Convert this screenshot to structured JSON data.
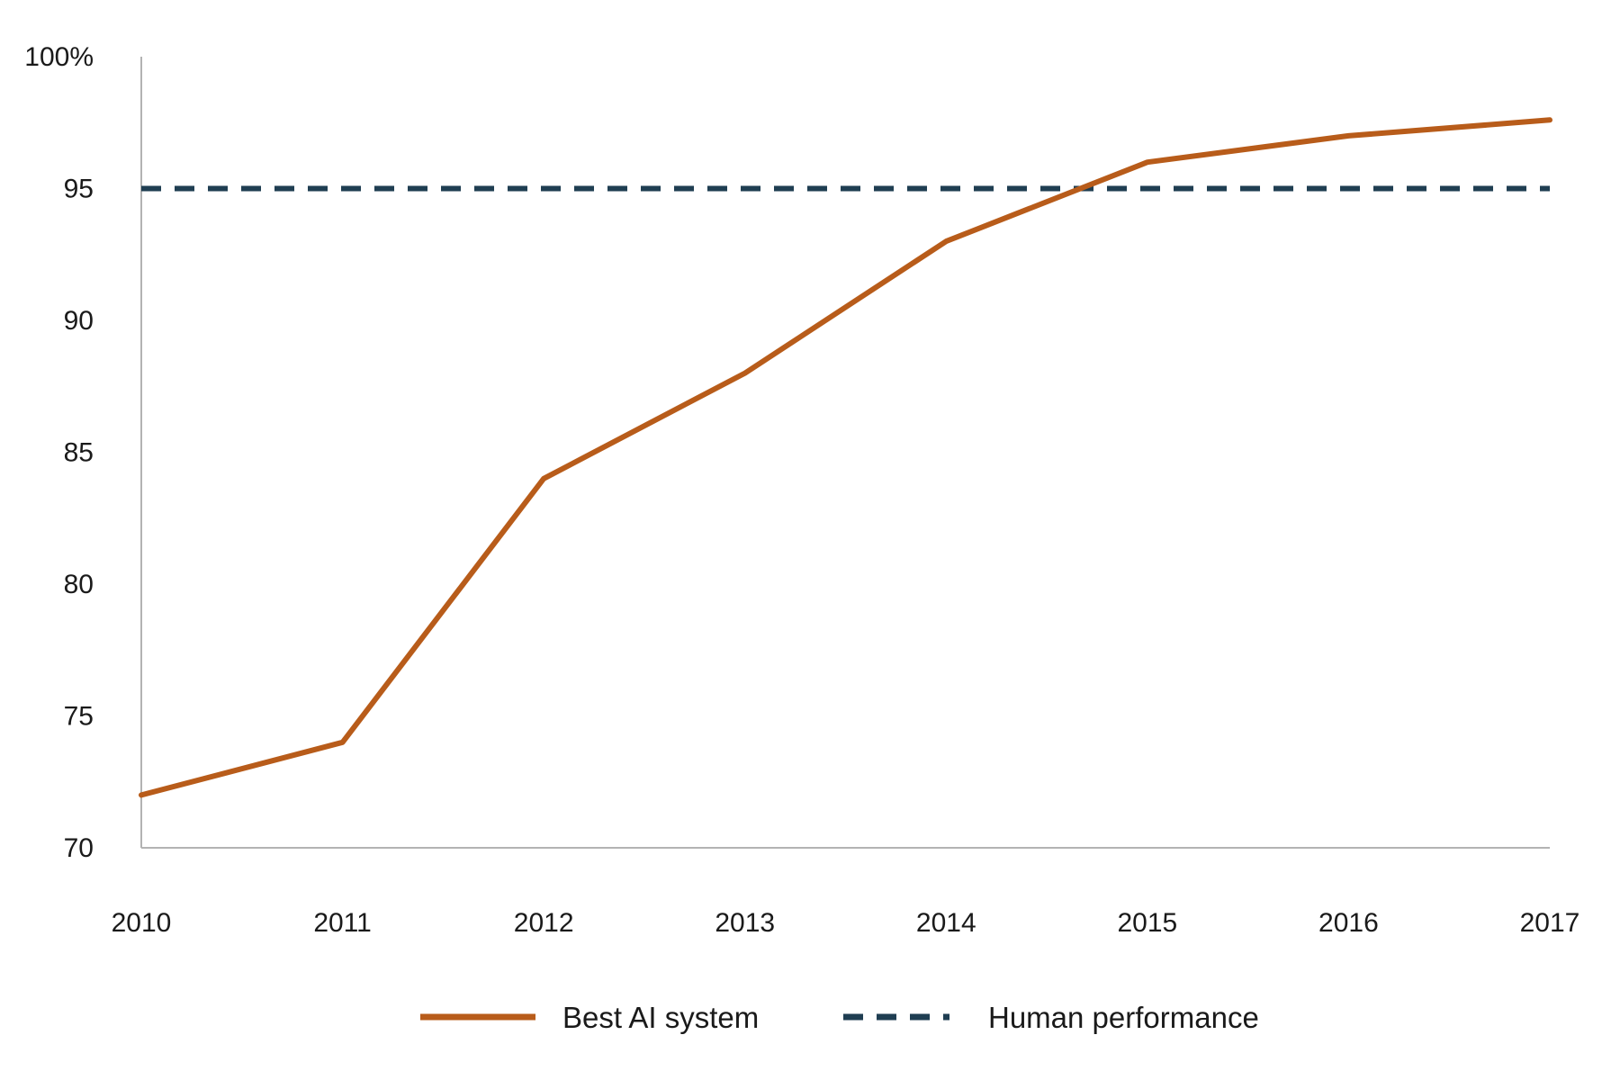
{
  "chart_data": {
    "type": "line",
    "title": "",
    "xlabel": "",
    "ylabel": "",
    "x": [
      2010,
      2011,
      2012,
      2013,
      2014,
      2015,
      2016,
      2017
    ],
    "x_tick_labels": [
      "2010",
      "2011",
      "2012",
      "2013",
      "2014",
      "2015",
      "2016",
      "2017"
    ],
    "y_ticks": [
      70,
      75,
      80,
      85,
      90,
      95,
      100
    ],
    "y_tick_labels": [
      "70",
      "75",
      "80",
      "85",
      "90",
      "95",
      "100%"
    ],
    "ylim": [
      70,
      100
    ],
    "grid": false,
    "legend_position": "bottom-center",
    "series": [
      {
        "name": "Best AI system",
        "style": "solid",
        "color": "#B85C1A",
        "values": [
          72,
          74,
          84,
          88,
          93,
          96,
          97,
          97.6
        ]
      },
      {
        "name": "Human performance",
        "style": "dashed",
        "color": "#1F3E52",
        "values": [
          95,
          95,
          95,
          95,
          95,
          95,
          95,
          95
        ]
      }
    ]
  }
}
